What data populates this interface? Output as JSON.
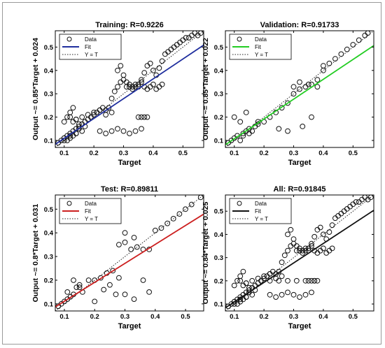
{
  "chart_data": [
    {
      "type": "scatter",
      "title": "Training: R=0.9226",
      "xlabel": "Target",
      "ylabel": "Output ~= 0.85*Target + 0.024",
      "xlim": [
        0.07,
        0.57
      ],
      "ylim": [
        0.07,
        0.57
      ],
      "xticks": [
        "0.1",
        "0.2",
        "0.3",
        "0.4",
        "0.5"
      ],
      "yticks": [
        "0.1",
        "0.2",
        "0.3",
        "0.4",
        "0.5"
      ],
      "legend": [
        "Data",
        "Fit",
        "Y = T"
      ],
      "legend_position": "top-left",
      "fit": {
        "slope": 0.85,
        "intercept": 0.024,
        "color": "#1f2e9e"
      },
      "data": {
        "x": [
          0.08,
          0.09,
          0.1,
          0.1,
          0.11,
          0.11,
          0.12,
          0.12,
          0.13,
          0.13,
          0.14,
          0.14,
          0.15,
          0.15,
          0.16,
          0.17,
          0.17,
          0.18,
          0.19,
          0.2,
          0.21,
          0.22,
          0.23,
          0.24,
          0.25,
          0.26,
          0.12,
          0.13,
          0.14,
          0.16,
          0.18,
          0.2,
          0.22,
          0.24,
          0.26,
          0.27,
          0.28,
          0.29,
          0.3,
          0.31,
          0.32,
          0.33,
          0.34,
          0.35,
          0.36,
          0.37,
          0.38,
          0.39,
          0.4,
          0.41,
          0.42,
          0.43,
          0.44,
          0.45,
          0.46,
          0.47,
          0.48,
          0.49,
          0.5,
          0.51,
          0.52,
          0.53,
          0.54,
          0.55,
          0.56,
          0.1,
          0.11,
          0.12,
          0.13,
          0.14,
          0.15,
          0.1,
          0.12,
          0.14,
          0.16,
          0.28,
          0.29,
          0.3,
          0.31,
          0.32,
          0.33,
          0.34,
          0.35,
          0.36,
          0.37,
          0.38,
          0.39,
          0.4,
          0.41,
          0.42,
          0.43,
          0.22,
          0.24,
          0.26,
          0.28,
          0.3,
          0.32,
          0.34,
          0.36,
          0.35,
          0.36,
          0.37,
          0.38
        ],
        "y": [
          0.09,
          0.1,
          0.1,
          0.11,
          0.12,
          0.1,
          0.13,
          0.11,
          0.14,
          0.12,
          0.15,
          0.13,
          0.16,
          0.15,
          0.17,
          0.18,
          0.16,
          0.19,
          0.2,
          0.21,
          0.22,
          0.23,
          0.24,
          0.23,
          0.24,
          0.22,
          0.2,
          0.18,
          0.19,
          0.2,
          0.21,
          0.22,
          0.23,
          0.21,
          0.28,
          0.31,
          0.33,
          0.35,
          0.36,
          0.33,
          0.34,
          0.33,
          0.34,
          0.33,
          0.36,
          0.39,
          0.42,
          0.43,
          0.4,
          0.38,
          0.41,
          0.44,
          0.47,
          0.48,
          0.49,
          0.5,
          0.51,
          0.52,
          0.53,
          0.54,
          0.54,
          0.55,
          0.56,
          0.55,
          0.56,
          0.18,
          0.2,
          0.22,
          0.24,
          0.19,
          0.17,
          0.11,
          0.12,
          0.13,
          0.14,
          0.4,
          0.42,
          0.38,
          0.35,
          0.33,
          0.32,
          0.33,
          0.34,
          0.35,
          0.33,
          0.32,
          0.33,
          0.34,
          0.32,
          0.33,
          0.34,
          0.14,
          0.13,
          0.14,
          0.15,
          0.14,
          0.13,
          0.14,
          0.15,
          0.2,
          0.2,
          0.2,
          0.2
        ]
      }
    },
    {
      "type": "scatter",
      "title": "Validation: R=0.91733",
      "xlabel": "Target",
      "ylabel": "Output ~= 0.85*Target + 0.022",
      "xlim": [
        0.07,
        0.57
      ],
      "ylim": [
        0.07,
        0.57
      ],
      "xticks": [
        "0.1",
        "0.2",
        "0.3",
        "0.4",
        "0.5"
      ],
      "yticks": [
        "0.1",
        "0.2",
        "0.3",
        "0.4",
        "0.5"
      ],
      "legend": [
        "Data",
        "Fit",
        "Y = T"
      ],
      "legend_position": "top-left",
      "fit": {
        "slope": 0.85,
        "intercept": 0.022,
        "color": "#22cc22"
      },
      "data": {
        "x": [
          0.08,
          0.09,
          0.1,
          0.11,
          0.12,
          0.13,
          0.14,
          0.15,
          0.16,
          0.17,
          0.18,
          0.2,
          0.22,
          0.24,
          0.26,
          0.28,
          0.3,
          0.32,
          0.34,
          0.36,
          0.38,
          0.4,
          0.42,
          0.44,
          0.46,
          0.48,
          0.5,
          0.52,
          0.54,
          0.55,
          0.1,
          0.12,
          0.14,
          0.3,
          0.32,
          0.35,
          0.38,
          0.4,
          0.25,
          0.28,
          0.33,
          0.36,
          0.13,
          0.15,
          0.18
        ],
        "y": [
          0.09,
          0.1,
          0.11,
          0.12,
          0.1,
          0.13,
          0.14,
          0.15,
          0.14,
          0.16,
          0.17,
          0.18,
          0.2,
          0.22,
          0.24,
          0.26,
          0.3,
          0.32,
          0.33,
          0.34,
          0.36,
          0.42,
          0.43,
          0.45,
          0.47,
          0.49,
          0.51,
          0.53,
          0.55,
          0.56,
          0.2,
          0.18,
          0.22,
          0.33,
          0.35,
          0.34,
          0.33,
          0.4,
          0.15,
          0.14,
          0.16,
          0.2,
          0.12,
          0.13,
          0.18
        ]
      }
    },
    {
      "type": "scatter",
      "title": "Test: R=0.89811",
      "xlabel": "Target",
      "ylabel": "Output ~= 0.8*Target + 0.031",
      "xlim": [
        0.07,
        0.56
      ],
      "ylim": [
        0.07,
        0.56
      ],
      "xticks": [
        "0.1",
        "0.2",
        "0.3",
        "0.4",
        "0.5"
      ],
      "yticks": [
        "0.1",
        "0.2",
        "0.3",
        "0.4",
        "0.5"
      ],
      "legend": [
        "Data",
        "Fit",
        "Y = T"
      ],
      "legend_position": "top-left",
      "fit": {
        "slope": 0.8,
        "intercept": 0.031,
        "color": "#cc1f1f"
      },
      "data": {
        "x": [
          0.08,
          0.09,
          0.1,
          0.11,
          0.12,
          0.13,
          0.14,
          0.15,
          0.16,
          0.18,
          0.2,
          0.22,
          0.24,
          0.26,
          0.28,
          0.3,
          0.32,
          0.34,
          0.36,
          0.38,
          0.4,
          0.42,
          0.44,
          0.46,
          0.48,
          0.5,
          0.52,
          0.55,
          0.11,
          0.13,
          0.15,
          0.25,
          0.28,
          0.3,
          0.33,
          0.36,
          0.38,
          0.3,
          0.33,
          0.2,
          0.23,
          0.27
        ],
        "y": [
          0.09,
          0.1,
          0.11,
          0.12,
          0.13,
          0.14,
          0.17,
          0.18,
          0.15,
          0.2,
          0.2,
          0.21,
          0.23,
          0.24,
          0.35,
          0.36,
          0.33,
          0.34,
          0.33,
          0.33,
          0.41,
          0.42,
          0.44,
          0.46,
          0.48,
          0.5,
          0.52,
          0.55,
          0.15,
          0.2,
          0.17,
          0.18,
          0.21,
          0.14,
          0.12,
          0.2,
          0.15,
          0.4,
          0.38,
          0.11,
          0.16,
          0.14
        ]
      }
    },
    {
      "type": "scatter",
      "title": "All: R=0.91845",
      "xlabel": "Target",
      "ylabel": "Output ~= 0.84*Target + 0.025",
      "xlim": [
        0.07,
        0.57
      ],
      "ylim": [
        0.07,
        0.57
      ],
      "xticks": [
        "0.1",
        "0.2",
        "0.3",
        "0.4",
        "0.5"
      ],
      "yticks": [
        "0.1",
        "0.2",
        "0.3",
        "0.4",
        "0.5"
      ],
      "legend": [
        "Data",
        "Fit",
        "Y = T"
      ],
      "legend_position": "top-left",
      "fit": {
        "slope": 0.84,
        "intercept": 0.025,
        "color": "#111111"
      },
      "data": {
        "x": [
          0.08,
          0.09,
          0.1,
          0.1,
          0.11,
          0.11,
          0.12,
          0.12,
          0.13,
          0.13,
          0.14,
          0.14,
          0.15,
          0.15,
          0.16,
          0.17,
          0.17,
          0.18,
          0.19,
          0.2,
          0.21,
          0.22,
          0.23,
          0.24,
          0.25,
          0.26,
          0.12,
          0.13,
          0.14,
          0.16,
          0.18,
          0.2,
          0.22,
          0.24,
          0.26,
          0.27,
          0.28,
          0.29,
          0.3,
          0.31,
          0.32,
          0.33,
          0.34,
          0.35,
          0.36,
          0.37,
          0.38,
          0.39,
          0.4,
          0.41,
          0.42,
          0.43,
          0.44,
          0.45,
          0.46,
          0.47,
          0.48,
          0.49,
          0.5,
          0.51,
          0.52,
          0.53,
          0.54,
          0.55,
          0.56,
          0.1,
          0.11,
          0.12,
          0.13,
          0.14,
          0.15,
          0.1,
          0.12,
          0.14,
          0.16,
          0.28,
          0.29,
          0.3,
          0.31,
          0.32,
          0.33,
          0.34,
          0.35,
          0.36,
          0.37,
          0.38,
          0.39,
          0.4,
          0.41,
          0.42,
          0.43,
          0.22,
          0.24,
          0.26,
          0.28,
          0.3,
          0.32,
          0.34,
          0.36,
          0.35,
          0.36,
          0.37,
          0.38,
          0.22,
          0.25,
          0.28,
          0.31,
          0.34,
          0.37
        ],
        "y": [
          0.09,
          0.1,
          0.1,
          0.11,
          0.12,
          0.1,
          0.13,
          0.11,
          0.14,
          0.12,
          0.15,
          0.13,
          0.16,
          0.15,
          0.17,
          0.18,
          0.16,
          0.19,
          0.2,
          0.21,
          0.22,
          0.23,
          0.24,
          0.23,
          0.24,
          0.22,
          0.2,
          0.18,
          0.19,
          0.2,
          0.21,
          0.22,
          0.23,
          0.21,
          0.28,
          0.31,
          0.33,
          0.35,
          0.36,
          0.33,
          0.34,
          0.33,
          0.34,
          0.33,
          0.36,
          0.39,
          0.42,
          0.43,
          0.4,
          0.38,
          0.41,
          0.44,
          0.47,
          0.48,
          0.49,
          0.5,
          0.51,
          0.52,
          0.53,
          0.54,
          0.54,
          0.55,
          0.56,
          0.55,
          0.56,
          0.18,
          0.2,
          0.22,
          0.24,
          0.19,
          0.17,
          0.11,
          0.12,
          0.13,
          0.14,
          0.4,
          0.42,
          0.38,
          0.35,
          0.33,
          0.32,
          0.33,
          0.34,
          0.35,
          0.33,
          0.32,
          0.33,
          0.34,
          0.32,
          0.33,
          0.34,
          0.14,
          0.13,
          0.14,
          0.15,
          0.14,
          0.13,
          0.14,
          0.15,
          0.2,
          0.2,
          0.2,
          0.2,
          0.2,
          0.2,
          0.2,
          0.2,
          0.2,
          0.2
        ]
      }
    }
  ]
}
